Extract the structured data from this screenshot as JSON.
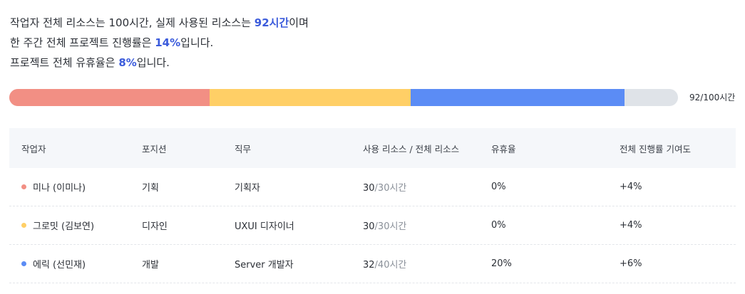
{
  "summary": {
    "line1_prefix": "작업자 전체 리소스는 100시간, 실제 사용된 리소스는 ",
    "line1_highlight": "92시간",
    "line1_suffix": "이며",
    "line2_prefix": "한 주간 전체 프로젝트 진행률은 ",
    "line2_highlight": "14%",
    "line2_suffix": "입니다.",
    "line3_prefix": "프로젝트 전체 유휴율은 ",
    "line3_highlight": "8%",
    "line3_suffix": "입니다."
  },
  "resource_bar": {
    "used": "92",
    "total_label": "/100시간",
    "segments": [
      {
        "name": "미나",
        "hours": 30,
        "color": "#f28f84"
      },
      {
        "name": "그로밋",
        "hours": 30,
        "color": "#ffcf66"
      },
      {
        "name": "에릭",
        "hours": 32,
        "color": "#5b8cf5"
      }
    ],
    "total_hours": 100,
    "track_color": "#dfe3e8"
  },
  "colors": {
    "highlight": "#3b5bdb",
    "header_bg": "#f5f7fa"
  },
  "table": {
    "headers": [
      "작업자",
      "포지션",
      "직무",
      "사용 리소스 / 전체 리소스",
      "유휴율",
      "전체 진행률 기여도"
    ],
    "rows": [
      {
        "name": "미나 (이미나)",
        "dot_color": "#f28f84",
        "position": "기획",
        "job": "기획자",
        "used": "30",
        "total": "/30시간",
        "idle": "0%",
        "contrib": "+4%"
      },
      {
        "name": "그로밋 (김보연)",
        "dot_color": "#ffcf66",
        "position": "디자인",
        "job": "UXUI 디자이너",
        "used": "30",
        "total": "/30시간",
        "idle": "0%",
        "contrib": "+4%"
      },
      {
        "name": "에릭 (선민재)",
        "dot_color": "#5b8cf5",
        "position": "개발",
        "job": "Server 개발자",
        "used": "32",
        "total": "/40시간",
        "idle": "20%",
        "contrib": "+6%"
      }
    ]
  }
}
